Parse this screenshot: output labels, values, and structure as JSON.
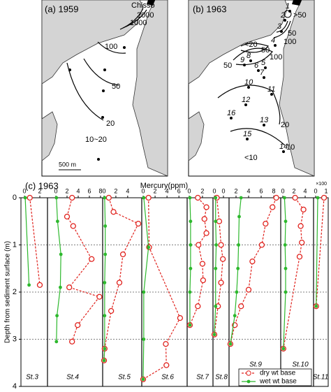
{
  "maps": [
    {
      "title": "(a) 1959",
      "labels": [
        "Chisso",
        "2000",
        "1000",
        "100",
        "50",
        "20",
        "10~20"
      ],
      "scale_label": "500 m"
    },
    {
      "title": "(b) 1963",
      "stations": [
        "1",
        "2",
        "3",
        "4",
        "5",
        "6",
        "7",
        "8",
        "9",
        "10",
        "11",
        "12",
        "13",
        "14",
        "15",
        "16"
      ],
      "labels": [
        ">50",
        "50",
        "100",
        "<20",
        "50",
        "100",
        "50",
        "20",
        "10",
        "<10"
      ]
    }
  ],
  "chart_data": {
    "type": "line",
    "title": "(c) 1963",
    "x_label": "Mercury(ppm)",
    "y_label": "Depth from sediment surface (m)",
    "ylim": [
      0,
      4
    ],
    "yticks": [
      0,
      1,
      2,
      3,
      4
    ],
    "y_inverted": true,
    "grid": true,
    "legend_position": "lower right",
    "series_styles": [
      {
        "name": "dry wt base",
        "color": "#e0201b"
      },
      {
        "name": "wet wt base",
        "color": "#2db82d"
      }
    ],
    "panels": [
      {
        "name": "St.3",
        "xlim": [
          0,
          3
        ],
        "xticks": [
          0,
          2
        ],
        "dry": {
          "depth": [
            0,
            1.85
          ],
          "values": [
            0.7,
            2.0
          ]
        },
        "wet": {
          "depth": [
            0,
            1.85
          ],
          "values": [
            0.1,
            0.6
          ]
        }
      },
      {
        "name": "St.4",
        "xlim": [
          0,
          8.5
        ],
        "xticks": [
          0,
          2,
          4,
          6,
          8
        ],
        "dry": {
          "depth": [
            0,
            0.4,
            0.6,
            1.3,
            1.9,
            2.1,
            2.7,
            3.05
          ],
          "values": [
            2.9,
            2.0,
            3.1,
            6.4,
            2.4,
            7.8,
            3.9,
            2.9
          ]
        },
        "wet": {
          "depth": [
            0,
            0.5,
            1.2,
            1.9,
            2.5,
            3.05
          ],
          "values": [
            0.1,
            0.3,
            0.9,
            0.8,
            0.2,
            0.1
          ]
        }
      },
      {
        "name": "St.5",
        "xlim": [
          0,
          6.5
        ],
        "xticks": [
          0,
          2,
          4
        ],
        "dry": {
          "depth": [
            0,
            0.3,
            0.55,
            1.2,
            1.8,
            2.4,
            3.2,
            3.45
          ],
          "values": [
            0.8,
            1.6,
            5.8,
            3.2,
            2.6,
            1.2,
            0.1,
            0
          ]
        },
        "wet": {
          "depth": [
            0,
            0.6,
            1.2,
            1.8,
            2.5,
            3.2,
            3.45
          ],
          "values": [
            0.1,
            0.2,
            0.2,
            0.1,
            0.1,
            0.1,
            0
          ]
        }
      },
      {
        "name": "St.6",
        "xlim": [
          0,
          7.5
        ],
        "xticks": [
          0,
          2,
          4,
          6
        ],
        "dry": {
          "depth": [
            0,
            1.05,
            2.55,
            3.1,
            3.55,
            3.85
          ],
          "values": [
            0.9,
            1.0,
            6.2,
            3.8,
            3.9,
            0
          ]
        },
        "wet": {
          "depth": [
            0,
            1.05,
            2.0,
            3.0,
            3.85
          ],
          "values": [
            0.1,
            0.9,
            0.1,
            0.1,
            0
          ]
        }
      },
      {
        "name": "St.7",
        "xlim": [
          0,
          3.7
        ],
        "xticks": [
          0,
          2
        ],
        "dry": {
          "depth": [
            0,
            0.2,
            0.45,
            0.75,
            1.0,
            1.4,
            1.75,
            2.3,
            2.7
          ],
          "values": [
            1.3,
            2.6,
            2.3,
            2.6,
            1.4,
            2.0,
            2.1,
            1.3,
            0.1
          ]
        },
        "wet": {
          "depth": [
            0,
            0.5,
            1.0,
            1.5,
            2.0,
            2.7
          ],
          "values": [
            0.1,
            0.2,
            0.2,
            0.2,
            0.1,
            0.1
          ]
        }
      },
      {
        "name": "St.8",
        "xlim": [
          0,
          1.5
        ],
        "xticks": [
          0
        ],
        "dry": {
          "depth": [
            0,
            0.5,
            1.0,
            1.3,
            1.8,
            2.3,
            2.9
          ],
          "values": [
            0.4,
            0.8,
            1.1,
            1.4,
            1.1,
            0.6,
            0
          ]
        },
        "wet": {
          "depth": [
            0,
            0.5,
            1.0,
            1.5,
            2.3,
            2.9
          ],
          "values": [
            0.2,
            0.2,
            0.3,
            0.2,
            0.2,
            0
          ]
        }
      },
      {
        "name": "St.9",
        "xlim": [
          0,
          9
        ],
        "xticks": [
          0,
          2,
          4,
          6,
          8
        ],
        "dry": {
          "depth": [
            0,
            0.2,
            0.55,
            1.0,
            1.35,
            1.95,
            2.3,
            2.7,
            3.1
          ],
          "values": [
            8.4,
            7.8,
            6.7,
            6.1,
            4.6,
            4.0,
            2.8,
            1.8,
            1.1
          ]
        },
        "wet": {
          "depth": [
            0,
            0.4,
            1.0,
            1.5,
            2.0,
            2.5,
            3.1
          ],
          "values": [
            2.8,
            2.5,
            2.4,
            2.3,
            2.1,
            1.8,
            1.1
          ]
        }
      },
      {
        "name": "St.10",
        "xlim": [
          0,
          5
        ],
        "xticks": [
          0,
          2,
          4
        ],
        "dry": {
          "depth": [
            0,
            0.25,
            0.6,
            0.95,
            1.25,
            3.2
          ],
          "values": [
            2.2,
            3.7,
            3.2,
            3.4,
            3.0,
            0.1
          ]
        },
        "wet": {
          "depth": [
            0,
            0.5,
            1.0,
            1.5,
            2.0,
            3.2
          ],
          "values": [
            0.3,
            0.5,
            0.4,
            0.5,
            0.5,
            0.1
          ]
        }
      },
      {
        "name": "St.11",
        "xlim": [
          0,
          1.2
        ],
        "xticks": [
          0,
          1
        ],
        "x_multiplier": "×100",
        "dry": {
          "depth": [
            0,
            2.3
          ],
          "values": [
            0.8,
            0.05
          ]
        },
        "wet": {
          "depth": [
            0,
            2.3
          ],
          "values": [
            0.2,
            0.05
          ]
        }
      }
    ]
  }
}
